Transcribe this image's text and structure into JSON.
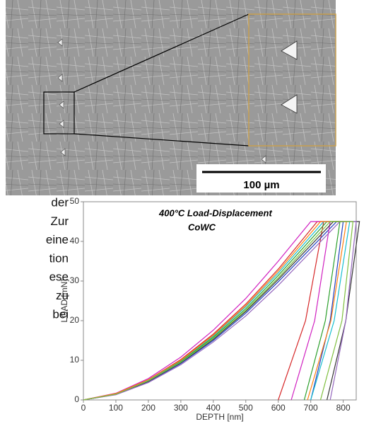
{
  "image": {
    "scale_bar": "100 µm"
  },
  "text_fragments": [
    "der",
    "Zur",
    "eine",
    "tion",
    "ese",
    "zu",
    "bei"
  ],
  "chart_data": {
    "type": "line",
    "title": "400°C Load-Displacement",
    "subtitle": "CoWC",
    "x_label": "DEPTH [nm]",
    "y_label": "LOAD [mN]",
    "xlim": [
      0,
      840
    ],
    "xticks": [
      0,
      100,
      200,
      300,
      400,
      500,
      600,
      700,
      800
    ],
    "ylim": [
      0,
      50
    ],
    "yticks": [
      0,
      10,
      20,
      30,
      40,
      50
    ],
    "grid": false,
    "series": [
      {
        "color": "#d62728",
        "x": [
          0,
          100,
          200,
          300,
          400,
          500,
          600,
          720,
          740,
          684,
          600
        ],
        "values": [
          0,
          1.6,
          5.1,
          10.2,
          16.6,
          24.2,
          33,
          45,
          45,
          20,
          0
        ]
      },
      {
        "color": "#1f3fbf",
        "x": [
          0,
          100,
          200,
          300,
          400,
          500,
          600,
          780,
          800,
          760,
          700
        ],
        "values": [
          0,
          1.4,
          4.6,
          9.2,
          15,
          21.9,
          29.8,
          45,
          45,
          20,
          0
        ]
      },
      {
        "color": "#2ca02c",
        "x": [
          0,
          100,
          200,
          300,
          400,
          500,
          600,
          750,
          790,
          745,
          680
        ],
        "values": [
          0,
          1.5,
          4.9,
          9.7,
          15.8,
          23,
          31.4,
          45,
          45,
          20,
          0
        ]
      },
      {
        "color": "#d020c0",
        "x": [
          0,
          100,
          200,
          300,
          400,
          500,
          600,
          700,
          760,
          712,
          640
        ],
        "values": [
          0,
          1.7,
          5.4,
          10.8,
          17.6,
          25.6,
          35,
          45,
          45,
          20,
          0
        ]
      },
      {
        "color": "#17becf",
        "x": [
          0,
          100,
          200,
          300,
          400,
          500,
          600,
          740,
          820,
          772,
          700
        ],
        "values": [
          0,
          1.5,
          5,
          9.9,
          16.1,
          23.5,
          32,
          45,
          45,
          20,
          0
        ]
      },
      {
        "color": "#333333",
        "x": [
          0,
          100,
          200,
          300,
          400,
          500,
          600,
          770,
          850,
          808,
          750
        ],
        "values": [
          0,
          1.4,
          4.7,
          9.4,
          15.3,
          22.3,
          30.4,
          45,
          45,
          20,
          0
        ]
      },
      {
        "color": "#ff7f0e",
        "x": [
          0,
          100,
          200,
          300,
          400,
          500,
          600,
          730,
          810,
          762,
          690
        ],
        "values": [
          0,
          1.6,
          5.1,
          10,
          16.3,
          23.8,
          32.5,
          45,
          45,
          20,
          0
        ]
      },
      {
        "color": "#9467bd",
        "x": [
          0,
          100,
          200,
          300,
          400,
          500,
          600,
          790,
          840,
          808,
          760
        ],
        "values": [
          0,
          1.3,
          4.4,
          8.9,
          14.6,
          21.2,
          28.9,
          45,
          45,
          20,
          0
        ]
      },
      {
        "color": "#7fbf3f",
        "x": [
          0,
          100,
          200,
          300,
          400,
          500,
          600,
          760,
          830,
          796,
          730
        ],
        "values": [
          0,
          1.45,
          4.8,
          9.5,
          15.5,
          22.6,
          30.8,
          45,
          45,
          20,
          0
        ]
      }
    ]
  }
}
